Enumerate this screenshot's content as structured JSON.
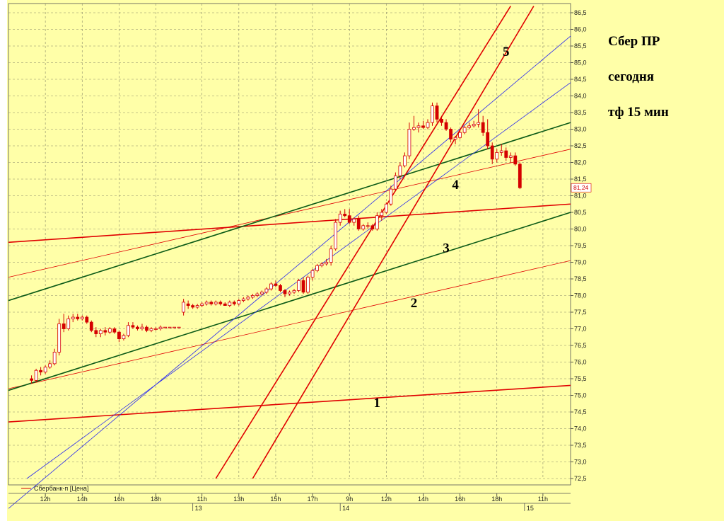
{
  "notes": [
    "Сбер ПР",
    "сегодня",
    "тф 15 мин"
  ],
  "legend": {
    "label": "Сбербанк-п [Цена]",
    "color": "#d40000"
  },
  "colors": {
    "background": "#ffffa8",
    "panel": "#ffffff",
    "grid": "#8a8a6a",
    "candle": "#d40000",
    "red_line": "#e00000",
    "green_line": "#0b5a16",
    "blue_line": "#2a2aee"
  },
  "chart_data": {
    "type": "candlestick",
    "ylim": [
      72.5,
      86.5
    ],
    "y_ticks": [
      "72,5",
      "73,0",
      "73,5",
      "74,0",
      "74,5",
      "75,0",
      "75,5",
      "76,0",
      "76,5",
      "77,0",
      "77,5",
      "78,0",
      "78,5",
      "79,0",
      "79,5",
      "80,0",
      "80,5",
      "81,0",
      "81,5",
      "82,0",
      "82,5",
      "83,0",
      "83,5",
      "84,0",
      "84,5",
      "85,0",
      "85,5",
      "86,0",
      "86,5"
    ],
    "x_ticks": [
      {
        "label": "12h",
        "t": 3
      },
      {
        "label": "14h",
        "t": 11
      },
      {
        "label": "16h",
        "t": 19
      },
      {
        "label": "18h",
        "t": 27
      },
      {
        "label": "11h",
        "t": 37
      },
      {
        "label": "13h",
        "t": 45
      },
      {
        "label": "15h",
        "t": 53
      },
      {
        "label": "17h",
        "t": 61
      },
      {
        "label": "9h",
        "t": 69
      },
      {
        "label": "12h",
        "t": 77
      },
      {
        "label": "14h",
        "t": 85
      },
      {
        "label": "16h",
        "t": 93
      },
      {
        "label": "18h",
        "t": 101
      },
      {
        "label": "11h",
        "t": 111
      }
    ],
    "x_range": [
      -5,
      117
    ],
    "day_labels": [
      {
        "label": "13",
        "t": 35
      },
      {
        "label": "14",
        "t": 67
      },
      {
        "label": "15",
        "t": 107
      }
    ],
    "last_price": "81,24",
    "candles": [
      [
        75.5,
        75.6,
        75.35,
        75.45
      ],
      [
        75.45,
        75.8,
        75.4,
        75.75
      ],
      [
        75.75,
        75.85,
        75.6,
        75.7
      ],
      [
        75.7,
        75.9,
        75.65,
        75.85
      ],
      [
        75.85,
        76.05,
        75.8,
        75.95
      ],
      [
        75.95,
        76.4,
        75.9,
        76.3
      ],
      [
        76.3,
        77.3,
        76.2,
        77.15
      ],
      [
        77.15,
        77.45,
        76.9,
        77.0
      ],
      [
        77.0,
        77.4,
        76.95,
        77.3
      ],
      [
        77.3,
        77.45,
        77.2,
        77.35
      ],
      [
        77.35,
        77.45,
        77.25,
        77.3
      ],
      [
        77.3,
        77.4,
        77.25,
        77.35
      ],
      [
        77.35,
        77.4,
        77.15,
        77.2
      ],
      [
        77.2,
        77.25,
        76.9,
        76.95
      ],
      [
        76.95,
        77.05,
        76.75,
        76.85
      ],
      [
        76.85,
        77.0,
        76.75,
        76.95
      ],
      [
        76.95,
        77.05,
        76.8,
        76.9
      ],
      [
        76.9,
        77.05,
        76.85,
        77.0
      ],
      [
        77.0,
        77.05,
        76.85,
        76.9
      ],
      [
        76.9,
        76.95,
        76.6,
        76.7
      ],
      [
        76.7,
        76.85,
        76.65,
        76.8
      ],
      [
        76.8,
        77.2,
        76.75,
        77.1
      ],
      [
        77.1,
        77.2,
        77.0,
        77.05
      ],
      [
        77.05,
        77.1,
        76.95,
        77.0
      ],
      [
        77.0,
        77.15,
        76.95,
        77.05
      ],
      [
        77.05,
        77.1,
        76.9,
        76.95
      ],
      [
        76.95,
        77.05,
        76.9,
        77.0
      ],
      [
        77.0,
        77.05,
        76.95,
        77.0
      ],
      [
        77.0,
        77.1,
        76.95,
        77.05
      ],
      [
        77.05,
        77.05,
        77.05,
        77.05
      ],
      [
        77.05,
        77.05,
        77.05,
        77.05
      ],
      [
        77.05,
        77.05,
        77.05,
        77.05
      ],
      [
        77.05,
        77.05,
        77.05,
        77.05
      ],
      [
        77.5,
        77.9,
        77.4,
        77.8
      ],
      [
        77.75,
        77.85,
        77.6,
        77.7
      ],
      [
        77.7,
        77.75,
        77.6,
        77.65
      ],
      [
        77.65,
        77.75,
        77.6,
        77.7
      ],
      [
        77.7,
        77.8,
        77.65,
        77.75
      ],
      [
        77.75,
        77.85,
        77.7,
        77.8
      ],
      [
        77.8,
        77.85,
        77.7,
        77.75
      ],
      [
        77.75,
        77.85,
        77.7,
        77.8
      ],
      [
        77.8,
        77.85,
        77.7,
        77.75
      ],
      [
        77.75,
        77.8,
        77.7,
        77.7
      ],
      [
        77.7,
        77.85,
        77.65,
        77.8
      ],
      [
        77.8,
        77.85,
        77.7,
        77.75
      ],
      [
        77.75,
        77.9,
        77.7,
        77.85
      ],
      [
        77.85,
        77.95,
        77.8,
        77.9
      ],
      [
        77.9,
        78.0,
        77.85,
        77.95
      ],
      [
        77.95,
        78.05,
        77.9,
        78.0
      ],
      [
        78.0,
        78.1,
        77.95,
        78.05
      ],
      [
        78.05,
        78.15,
        78.0,
        78.1
      ],
      [
        78.1,
        78.25,
        78.05,
        78.2
      ],
      [
        78.2,
        78.4,
        78.15,
        78.35
      ],
      [
        78.35,
        78.45,
        78.25,
        78.3
      ],
      [
        78.3,
        78.35,
        78.1,
        78.15
      ],
      [
        78.15,
        78.2,
        77.95,
        78.05
      ],
      [
        78.05,
        78.15,
        78.0,
        78.1
      ],
      [
        78.1,
        78.2,
        78.05,
        78.15
      ],
      [
        78.15,
        78.5,
        78.1,
        78.45
      ],
      [
        78.45,
        78.55,
        78.05,
        78.1
      ],
      [
        78.1,
        78.6,
        78.05,
        78.55
      ],
      [
        78.55,
        78.8,
        78.45,
        78.75
      ],
      [
        78.75,
        78.95,
        78.7,
        78.9
      ],
      [
        78.9,
        79.0,
        78.85,
        78.95
      ],
      [
        78.95,
        79.1,
        78.9,
        79.0
      ],
      [
        79.0,
        79.5,
        78.9,
        79.4
      ],
      [
        79.4,
        80.3,
        79.35,
        80.2
      ],
      [
        80.2,
        80.55,
        80.1,
        80.45
      ],
      [
        80.45,
        80.6,
        80.35,
        80.4
      ],
      [
        80.4,
        80.6,
        80.15,
        80.2
      ],
      [
        80.2,
        80.35,
        80.1,
        80.3
      ],
      [
        80.3,
        80.4,
        79.95,
        80.0
      ],
      [
        80.0,
        80.15,
        79.95,
        80.1
      ],
      [
        80.1,
        80.2,
        80.0,
        80.1
      ],
      [
        80.1,
        80.15,
        79.95,
        80.0
      ],
      [
        80.0,
        80.5,
        79.95,
        80.4
      ],
      [
        80.4,
        80.6,
        80.25,
        80.5
      ],
      [
        80.5,
        80.8,
        80.45,
        80.75
      ],
      [
        80.75,
        81.3,
        80.7,
        81.2
      ],
      [
        81.2,
        81.7,
        81.15,
        81.6
      ],
      [
        81.6,
        82.0,
        81.5,
        81.9
      ],
      [
        81.9,
        82.3,
        81.85,
        82.2
      ],
      [
        82.2,
        83.2,
        82.1,
        83.0
      ],
      [
        83.0,
        83.4,
        82.95,
        83.05
      ],
      [
        83.05,
        83.2,
        82.9,
        83.1
      ],
      [
        83.1,
        83.25,
        83.0,
        83.05
      ],
      [
        83.05,
        83.3,
        83.0,
        83.2
      ],
      [
        83.2,
        83.8,
        83.1,
        83.7
      ],
      [
        83.7,
        83.8,
        83.2,
        83.3
      ],
      [
        83.3,
        83.4,
        83.1,
        83.2
      ],
      [
        83.2,
        83.3,
        82.95,
        83.0
      ],
      [
        83.0,
        83.05,
        82.6,
        82.7
      ],
      [
        82.7,
        82.8,
        82.55,
        82.75
      ],
      [
        82.75,
        83.0,
        82.7,
        82.9
      ],
      [
        82.9,
        83.1,
        82.85,
        83.05
      ],
      [
        83.05,
        83.2,
        83.0,
        83.1
      ],
      [
        83.1,
        83.25,
        83.05,
        83.15
      ],
      [
        83.15,
        83.6,
        83.05,
        83.2
      ],
      [
        83.2,
        83.4,
        82.8,
        82.9
      ],
      [
        82.9,
        83.3,
        82.4,
        82.5
      ],
      [
        82.5,
        82.6,
        81.95,
        82.1
      ],
      [
        82.1,
        82.4,
        82.0,
        82.3
      ],
      [
        82.3,
        82.55,
        82.2,
        82.35
      ],
      [
        82.35,
        82.45,
        82.05,
        82.15
      ],
      [
        82.15,
        82.3,
        82.0,
        82.2
      ],
      [
        82.2,
        82.3,
        81.9,
        81.95
      ],
      [
        81.95,
        82.0,
        81.2,
        81.24
      ]
    ],
    "lines": [
      {
        "label": "1",
        "color": "#e00000",
        "width": 1.6,
        "p1": [
          -5,
          74.2
        ],
        "p2": [
          117,
          75.3
        ]
      },
      {
        "label": "",
        "color": "#e00000",
        "width": 1.6,
        "p1": [
          -5,
          79.6
        ],
        "p2": [
          117,
          80.75
        ]
      },
      {
        "label": "2",
        "color": "#e00000",
        "width": 0.8,
        "p1": [
          -5,
          75.2
        ],
        "p2": [
          117,
          79.05
        ]
      },
      {
        "label": "",
        "color": "#e00000",
        "width": 0.8,
        "p1": [
          -5,
          78.55
        ],
        "p2": [
          117,
          82.4
        ]
      },
      {
        "label": "3",
        "color": "#0b5a16",
        "width": 1.6,
        "p1": [
          -5,
          75.15
        ],
        "p2": [
          117,
          80.5
        ]
      },
      {
        "label": "",
        "color": "#0b5a16",
        "width": 1.6,
        "p1": [
          -5,
          77.85
        ],
        "p2": [
          117,
          83.2
        ]
      },
      {
        "label": "4",
        "color": "#2a2aee",
        "width": 0.8,
        "p1": [
          -1,
          72.5
        ],
        "p2": [
          117,
          84.4
        ]
      },
      {
        "label": "",
        "color": "#2a2aee",
        "width": 0.8,
        "p1": [
          -5,
          71.6
        ],
        "p2": [
          117,
          85.8
        ]
      },
      {
        "label": "5",
        "color": "#e00000",
        "width": 1.6,
        "p1": [
          40,
          72.5
        ],
        "p2": [
          104,
          86.7
        ]
      },
      {
        "label": "",
        "color": "#e00000",
        "width": 1.6,
        "p1": [
          48,
          72.5
        ],
        "p2": [
          109,
          86.7
        ]
      }
    ],
    "line_labels": [
      {
        "label": "1",
        "t": 75,
        "v": 74.65
      },
      {
        "label": "2",
        "t": 83,
        "v": 77.65
      },
      {
        "label": "3",
        "t": 90,
        "v": 79.3
      },
      {
        "label": "4",
        "t": 92,
        "v": 81.2
      },
      {
        "label": "5",
        "t": 103,
        "v": 85.2
      }
    ]
  }
}
